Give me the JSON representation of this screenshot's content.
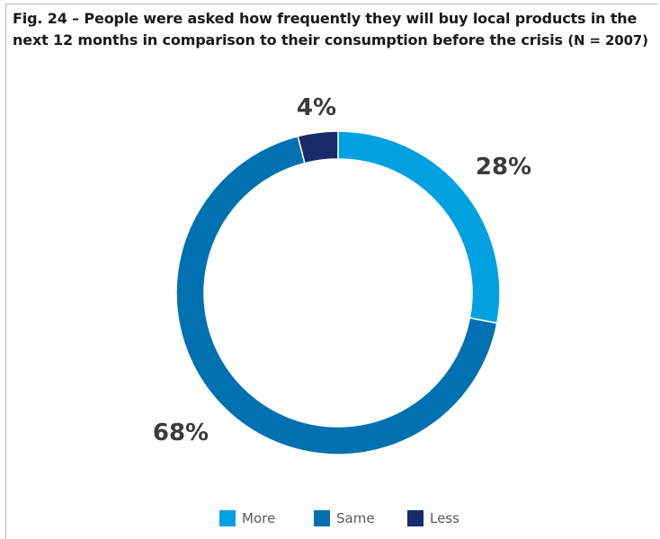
{
  "chart_data": {
    "type": "pie",
    "donut": true,
    "title": "Fig. 24 – People were asked how frequently they will buy local products in the next 12 months in comparison to their consumption before the crisis",
    "title_note": "(N = 2007)",
    "categories": [
      "More",
      "Same",
      "Less"
    ],
    "values": [
      28,
      68,
      4
    ],
    "unit": "%",
    "data_labels": [
      "28%",
      "68%",
      "4%"
    ],
    "colors": [
      "#00a1e1",
      "#0071b0",
      "#1b2a6b"
    ],
    "legend_position": "bottom"
  }
}
